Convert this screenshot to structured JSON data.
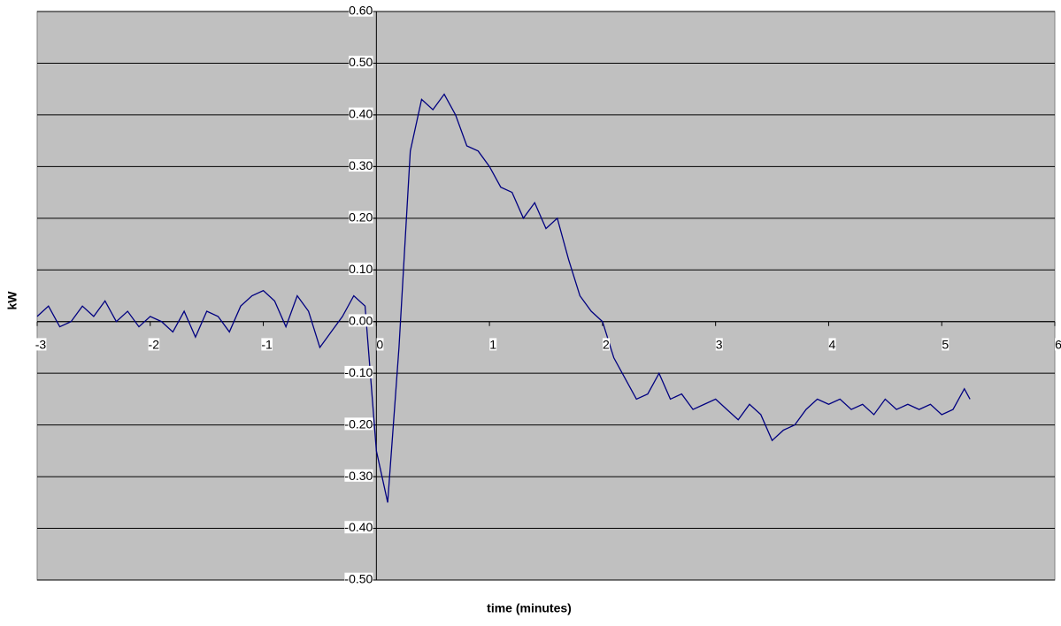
{
  "chart_data": {
    "type": "line",
    "x_label": "time (minutes)",
    "y_label": "kW",
    "x": [
      -3.0,
      -2.9,
      -2.8,
      -2.7,
      -2.6,
      -2.5,
      -2.4,
      -2.3,
      -2.2,
      -2.1,
      -2.0,
      -1.9,
      -1.8,
      -1.7,
      -1.6,
      -1.5,
      -1.4,
      -1.3,
      -1.2,
      -1.1,
      -1.0,
      -0.9,
      -0.8,
      -0.7,
      -0.6,
      -0.5,
      -0.4,
      -0.3,
      -0.2,
      -0.1,
      0.0,
      0.1,
      0.2,
      0.3,
      0.4,
      0.5,
      0.6,
      0.7,
      0.8,
      0.9,
      1.0,
      1.1,
      1.2,
      1.3,
      1.4,
      1.5,
      1.6,
      1.7,
      1.8,
      1.9,
      2.0,
      2.1,
      2.2,
      2.3,
      2.4,
      2.5,
      2.6,
      2.7,
      2.8,
      2.9,
      3.0,
      3.1,
      3.2,
      3.3,
      3.4,
      3.5,
      3.6,
      3.7,
      3.8,
      3.9,
      4.0,
      4.1,
      4.2,
      4.3,
      4.4,
      4.5,
      4.6,
      4.7,
      4.8,
      4.9,
      5.0,
      5.1,
      5.2,
      5.25
    ],
    "series": [
      {
        "color": "#000080",
        "values": [
          0.01,
          0.03,
          -0.01,
          0.0,
          0.03,
          0.01,
          0.04,
          0.0,
          0.02,
          -0.01,
          0.01,
          0.0,
          -0.02,
          0.02,
          -0.03,
          0.02,
          0.01,
          -0.02,
          0.03,
          0.05,
          0.06,
          0.04,
          -0.01,
          0.05,
          0.02,
          -0.05,
          -0.02,
          0.01,
          0.05,
          0.03,
          -0.25,
          -0.35,
          -0.05,
          0.33,
          0.43,
          0.41,
          0.44,
          0.4,
          0.34,
          0.33,
          0.3,
          0.26,
          0.25,
          0.2,
          0.23,
          0.18,
          0.2,
          0.12,
          0.05,
          0.02,
          0.0,
          -0.07,
          -0.11,
          -0.15,
          -0.14,
          -0.1,
          -0.15,
          -0.14,
          -0.17,
          -0.16,
          -0.15,
          -0.17,
          -0.19,
          -0.16,
          -0.18,
          -0.23,
          -0.21,
          -0.2,
          -0.17,
          -0.15,
          -0.16,
          -0.15,
          -0.17,
          -0.16,
          -0.18,
          -0.15,
          -0.17,
          -0.16,
          -0.17,
          -0.16,
          -0.18,
          -0.17,
          -0.13,
          -0.15
        ]
      }
    ],
    "xlim": [
      -3,
      6
    ],
    "xticks": [
      -3,
      -2,
      -1,
      0,
      1,
      2,
      3,
      4,
      5,
      6
    ],
    "ylim": [
      -0.5,
      0.6
    ],
    "yticks": [
      {
        "value": -0.5,
        "label": "-0.50"
      },
      {
        "value": -0.4,
        "label": "-0.40"
      },
      {
        "value": -0.3,
        "label": "-0.30"
      },
      {
        "value": -0.2,
        "label": "-0.20"
      },
      {
        "value": -0.1,
        "label": "-0.10"
      },
      {
        "value": 0,
        "label": "0.00"
      },
      {
        "value": 0.1,
        "label": "0.10"
      },
      {
        "value": 0.2,
        "label": "0.20"
      },
      {
        "value": 0.3,
        "label": "0.30"
      },
      {
        "value": 0.4,
        "label": "0.40"
      },
      {
        "value": 0.5,
        "label": "0.50"
      },
      {
        "value": 0.6,
        "label": "0.60"
      }
    ],
    "grid": true
  }
}
